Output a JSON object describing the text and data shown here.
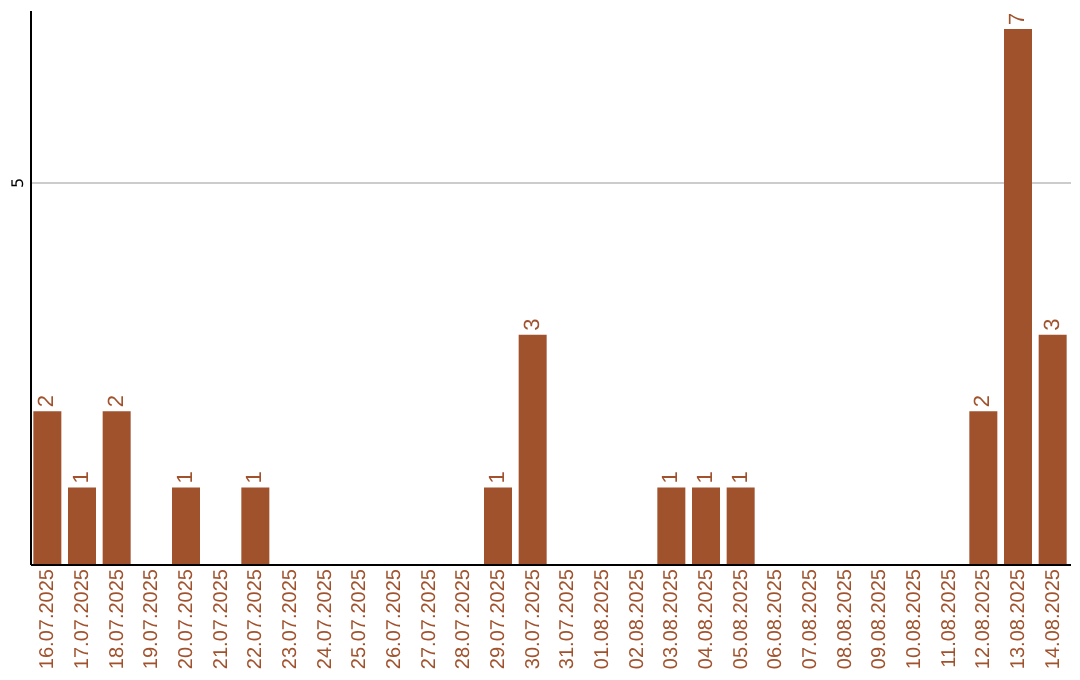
{
  "chart_data": {
    "type": "bar",
    "categories": [
      "16.07.2025",
      "17.07.2025",
      "18.07.2025",
      "19.07.2025",
      "20.07.2025",
      "21.07.2025",
      "22.07.2025",
      "23.07.2025",
      "24.07.2025",
      "25.07.2025",
      "26.07.2025",
      "27.07.2025",
      "28.07.2025",
      "29.07.2025",
      "30.07.2025",
      "31.07.2025",
      "01.08.2025",
      "02.08.2025",
      "03.08.2025",
      "04.08.2025",
      "05.08.2025",
      "06.08.2025",
      "07.08.2025",
      "08.08.2025",
      "09.08.2025",
      "10.08.2025",
      "11.08.2025",
      "12.08.2025",
      "13.08.2025",
      "14.08.2025"
    ],
    "values": [
      2,
      1,
      2,
      0,
      1,
      0,
      1,
      0,
      0,
      0,
      0,
      0,
      0,
      1,
      3,
      0,
      0,
      0,
      1,
      1,
      1,
      0,
      0,
      0,
      0,
      0,
      0,
      2,
      7,
      3
    ],
    "value_labels": [
      "2",
      "1",
      "2",
      null,
      "1",
      null,
      "1",
      null,
      null,
      null,
      null,
      null,
      null,
      "1",
      "3",
      null,
      null,
      null,
      "1",
      "1",
      "1",
      null,
      null,
      null,
      null,
      null,
      null,
      "2",
      "7",
      "3"
    ],
    "color": "#a0522d",
    "ylim": [
      0,
      7.25
    ],
    "yticks": [
      5
    ],
    "grid": "y"
  }
}
